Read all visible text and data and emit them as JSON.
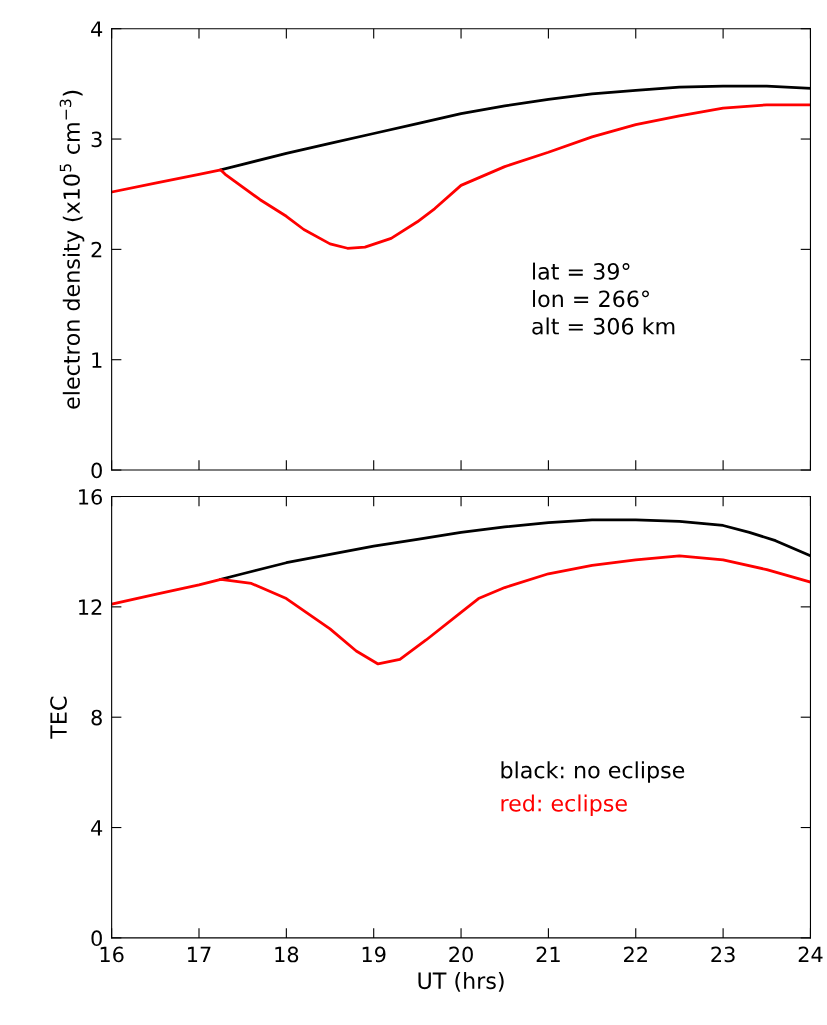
{
  "chart_data": [
    {
      "type": "line",
      "ylabel": "electron density (x10$^{5}$ cm$^{−3}$)",
      "xlim": [
        16,
        24
      ],
      "xticks": [
        16,
        17,
        18,
        19,
        20,
        21,
        22,
        23,
        24
      ],
      "ylim": [
        0,
        4
      ],
      "yticks": [
        0,
        1,
        2,
        3,
        4
      ],
      "tick_labels": "y",
      "annotations": [
        "lat = 39°\nlon = 266°\nalt = 306 km"
      ],
      "series": [
        {
          "color": "#000000",
          "x": [
            17.25,
            17.5,
            18,
            18.5,
            19,
            19.5,
            20,
            20.5,
            21,
            21.5,
            22,
            22.5,
            23,
            23.5,
            24
          ],
          "values": [
            2.72,
            2.77,
            2.87,
            2.96,
            3.05,
            3.14,
            3.23,
            3.3,
            3.36,
            3.41,
            3.44,
            3.47,
            3.48,
            3.48,
            3.46
          ]
        },
        {
          "color": "#ff0000",
          "x": [
            16,
            16.5,
            17,
            17.25,
            17.3,
            17.7,
            18,
            18.2,
            18.5,
            18.7,
            18.9,
            19.2,
            19.5,
            19.7,
            20,
            20.5,
            21,
            21.5,
            22,
            22.5,
            23,
            23.5,
            24
          ],
          "values": [
            2.52,
            2.6,
            2.68,
            2.72,
            2.68,
            2.45,
            2.3,
            2.18,
            2.05,
            2.01,
            2.02,
            2.1,
            2.25,
            2.37,
            2.58,
            2.75,
            2.88,
            3.02,
            3.13,
            3.21,
            3.28,
            3.31,
            3.31
          ]
        }
      ]
    },
    {
      "type": "line",
      "xlabel": "UT (hrs)",
      "ylabel": "TEC",
      "xlim": [
        16,
        24
      ],
      "xticks": [
        16,
        17,
        18,
        19,
        20,
        21,
        22,
        23,
        24
      ],
      "ylim": [
        0,
        16
      ],
      "yticks": [
        0,
        4,
        8,
        12,
        16
      ],
      "annotations": [
        "black: no eclipse",
        "red: eclipse"
      ],
      "series": [
        {
          "color": "#000000",
          "x": [
            17.25,
            17.5,
            18,
            18.5,
            19,
            19.5,
            20,
            20.5,
            21,
            21.5,
            22,
            22.5,
            23,
            23.3,
            23.6,
            24
          ],
          "values": [
            13.0,
            13.2,
            13.6,
            13.9,
            14.2,
            14.45,
            14.7,
            14.9,
            15.05,
            15.15,
            15.15,
            15.1,
            14.95,
            14.7,
            14.4,
            13.85
          ]
        },
        {
          "color": "#ff0000",
          "x": [
            16,
            16.5,
            17,
            17.25,
            17.6,
            18,
            18.5,
            18.8,
            19.05,
            19.3,
            19.6,
            20,
            20.2,
            20.5,
            21,
            21.5,
            22,
            22.5,
            23,
            23.5,
            24
          ],
          "values": [
            12.1,
            12.45,
            12.8,
            13.0,
            12.85,
            12.3,
            11.2,
            10.4,
            9.93,
            10.1,
            10.8,
            11.8,
            12.3,
            12.7,
            13.2,
            13.5,
            13.7,
            13.85,
            13.7,
            13.35,
            12.9
          ]
        }
      ]
    }
  ]
}
